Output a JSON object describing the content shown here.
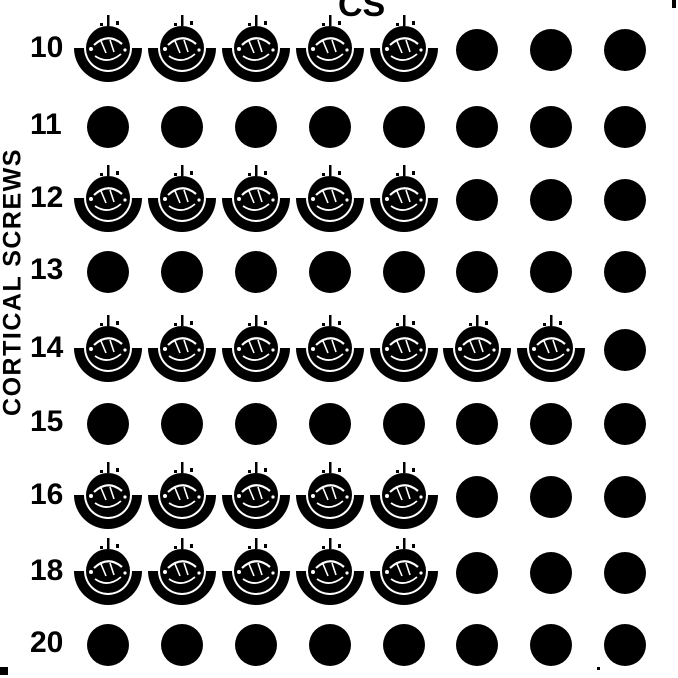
{
  "top_title": "CS",
  "side_title": "CORTICAL SCREWS",
  "columns": 8,
  "rows": [
    {
      "label": "10",
      "screws": 5
    },
    {
      "label": "11",
      "screws": 0
    },
    {
      "label": "12",
      "screws": 5
    },
    {
      "label": "13",
      "screws": 0
    },
    {
      "label": "14",
      "screws": 7
    },
    {
      "label": "15",
      "screws": 0
    },
    {
      "label": "16",
      "screws": 5
    },
    {
      "label": "18",
      "screws": 5
    },
    {
      "label": "20",
      "screws": 0
    }
  ],
  "icons": {
    "filled_hole": "empty-hole-icon",
    "screw_head": "screw-head-icon"
  },
  "colors": {
    "ink": "#000000",
    "paper": "#ffffff"
  }
}
